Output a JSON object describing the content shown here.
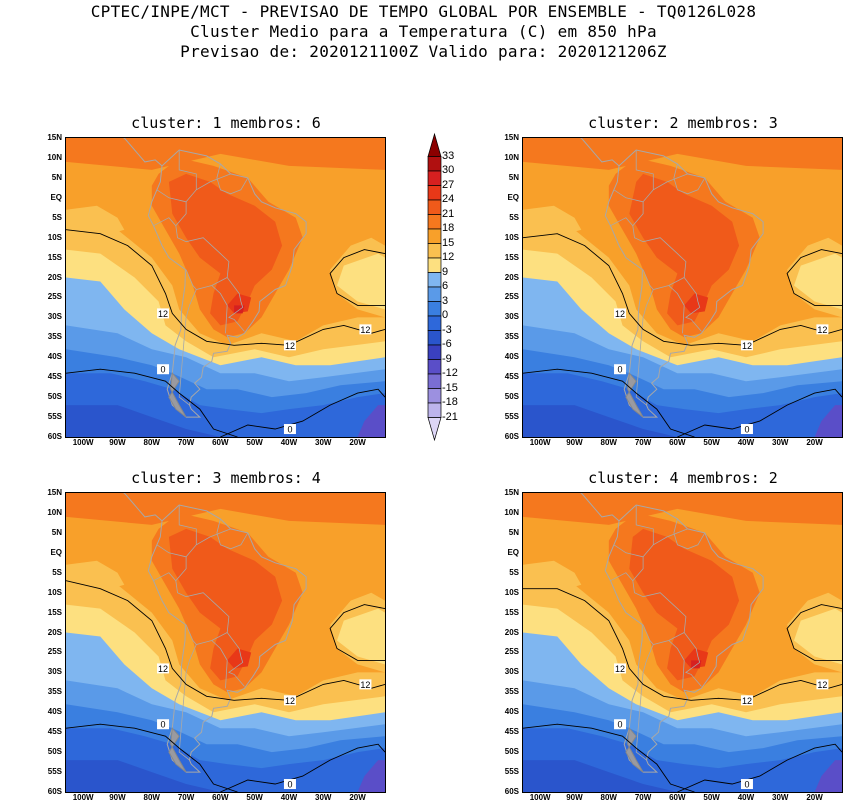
{
  "header": {
    "line1": "CPTEC/INPE/MCT - PREVISAO DE TEMPO GLOBAL POR ENSEMBLE - TQ0126L028",
    "line2": "Cluster Medio para a Temperatura (C) em 850 hPa",
    "line3": "Previsao de: 2020121100Z   Valido para: 2020121206Z"
  },
  "panels": [
    {
      "title": "cluster: 1   membros: 6"
    },
    {
      "title": "cluster: 2   membros: 3"
    },
    {
      "title": "cluster: 3   membros: 4"
    },
    {
      "title": "cluster: 4   membros: 2"
    }
  ],
  "axes": {
    "lat_labels": [
      "15N",
      "10N",
      "5N",
      "EQ",
      "5S",
      "10S",
      "15S",
      "20S",
      "25S",
      "30S",
      "35S",
      "40S",
      "45S",
      "50S",
      "55S",
      "60S"
    ],
    "lon_labels": [
      "100W",
      "90W",
      "80W",
      "70W",
      "60W",
      "50W",
      "40W",
      "30W",
      "20W"
    ]
  },
  "contour_labels": {
    "twelve": "12",
    "zero": "0"
  },
  "colorbar": {
    "levels": [
      "33",
      "30",
      "27",
      "24",
      "21",
      "18",
      "15",
      "12",
      "9",
      "6",
      "3",
      "0",
      "-3",
      "-6",
      "-9",
      "-12",
      "-15",
      "-18",
      "-21"
    ],
    "colors": [
      "#8b0000",
      "#b01010",
      "#d62020",
      "#e83818",
      "#f05a1a",
      "#f5781e",
      "#f8a02a",
      "#fac050",
      "#fde080",
      "#7fb6f0",
      "#5a9ae8",
      "#3a7fe0",
      "#2e68da",
      "#2a55cc",
      "#3a40c0",
      "#5a4ec8",
      "#7a6ed4",
      "#9c90e0",
      "#bdb4ec",
      "#ddd6f6"
    ]
  }
}
